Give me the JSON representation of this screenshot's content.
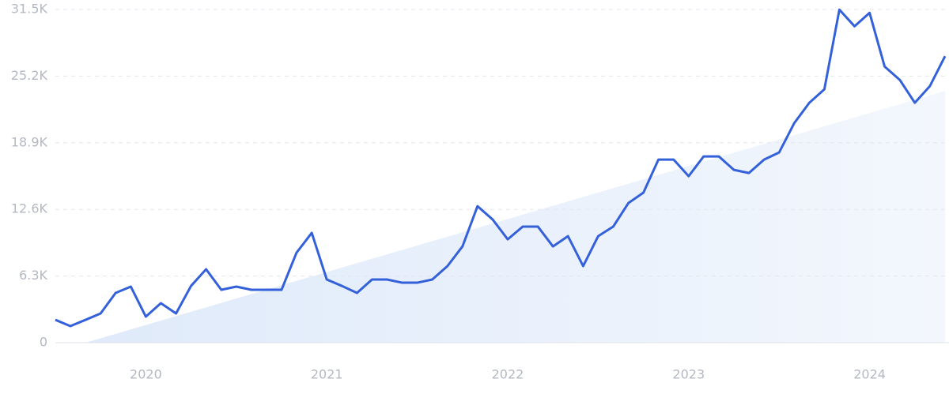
{
  "chart_data": {
    "type": "line",
    "x": [
      2019.5,
      2019.583,
      2019.667,
      2019.75,
      2019.833,
      2019.917,
      2020,
      2020.083,
      2020.167,
      2020.25,
      2020.333,
      2020.417,
      2020.5,
      2020.583,
      2020.667,
      2020.75,
      2020.833,
      2020.917,
      2021,
      2021.083,
      2021.167,
      2021.25,
      2021.333,
      2021.417,
      2021.5,
      2021.583,
      2021.667,
      2021.75,
      2021.833,
      2021.917,
      2022,
      2022.083,
      2022.167,
      2022.25,
      2022.333,
      2022.417,
      2022.5,
      2022.583,
      2022.667,
      2022.75,
      2022.833,
      2022.917,
      2023,
      2023.083,
      2023.167,
      2023.25,
      2023.333,
      2023.417,
      2023.5,
      2023.583,
      2023.667,
      2023.75,
      2023.833,
      2023.917,
      2024,
      2024.083,
      2024.167,
      2024.25,
      2024.333,
      2024.417
    ],
    "series": [
      {
        "color": "#3461d9",
        "values": [
          2160,
          1570,
          2160,
          2760,
          4700,
          5300,
          2460,
          3730,
          2760,
          5370,
          6940,
          5000,
          5300,
          5000,
          5000,
          5000,
          8510,
          10380,
          5970,
          5370,
          4700,
          5970,
          5970,
          5670,
          5670,
          5970,
          7240,
          9100,
          12900,
          11640,
          9770,
          10970,
          10970,
          9100,
          10070,
          7240,
          10070,
          10970,
          13200,
          14180,
          17310,
          17310,
          15740,
          17610,
          17610,
          16340,
          16040,
          17310,
          17980,
          20740,
          22680,
          23950,
          31480,
          29910,
          31180,
          26110,
          24840,
          22680,
          24250,
          27080
        ]
      }
    ],
    "trend": {
      "color": "#e3edfb",
      "x": [
        2019.667,
        2024.417
      ],
      "values": [
        0,
        23800
      ]
    },
    "xlim": [
      2019.5,
      2024.417
    ],
    "xticks": [
      2020,
      2021,
      2022,
      2023,
      2024
    ],
    "ylim": [
      0,
      31500
    ],
    "yticks": [
      0,
      {
        "value": 6300,
        "label": "6.3K"
      },
      {
        "value": 12600,
        "label": "12.6K"
      },
      {
        "value": 18900,
        "label": "18.9K"
      },
      {
        "value": 25200,
        "label": "25.2K"
      },
      {
        "value": 31500,
        "label": "31.5K"
      }
    ],
    "grid": true
  }
}
